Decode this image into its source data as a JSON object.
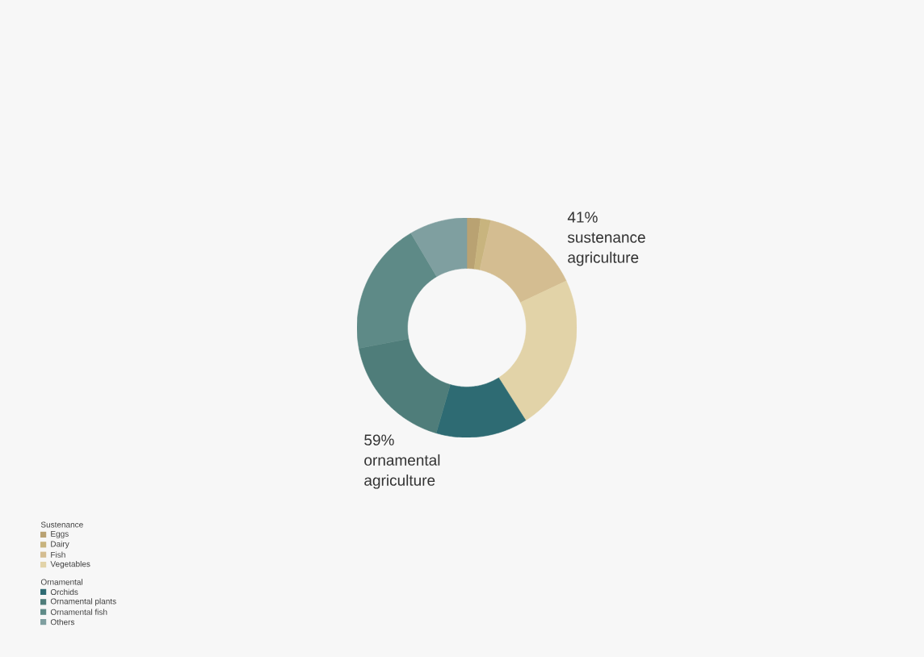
{
  "chart_data": {
    "type": "donut",
    "categories": [
      "Eggs",
      "Dairy",
      "Fish",
      "Vegetables",
      "Orchids",
      "Ornamental plants",
      "Ornamental fish",
      "Others"
    ],
    "values": [
      2,
      1.5,
      14.5,
      23,
      13.5,
      17.5,
      19.5,
      8.5
    ],
    "colors": [
      "#b9a272",
      "#c8b47e",
      "#d4bd91",
      "#e2d3a8",
      "#2e6b73",
      "#4f7d7a",
      "#5e8a87",
      "#7f9fa0"
    ],
    "legend_title": "Sustenance",
    "annotations": [
      "Ornamental",
      "41% sustenance agriculture",
      "59% ornamental agriculture"
    ],
    "legend": "bottom left"
  }
}
